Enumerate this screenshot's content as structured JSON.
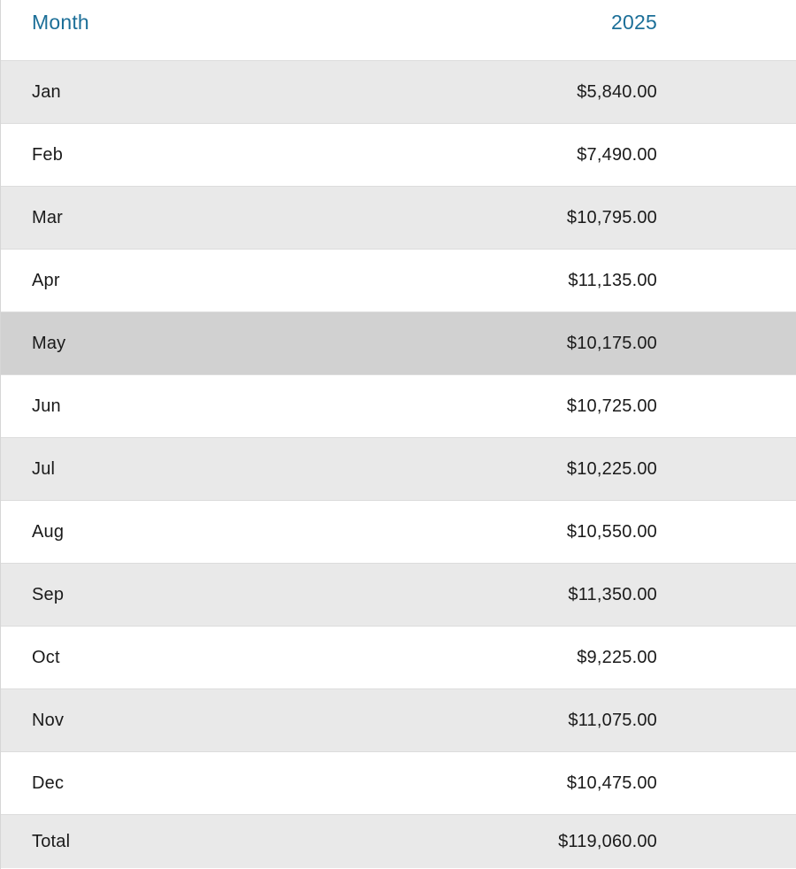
{
  "table": {
    "header": {
      "month": "Month",
      "year": "2025"
    },
    "rows": [
      {
        "month": "Jan",
        "value": "$5,840.00"
      },
      {
        "month": "Feb",
        "value": "$7,490.00"
      },
      {
        "month": "Mar",
        "value": "$10,795.00"
      },
      {
        "month": "Apr",
        "value": "$11,135.00"
      },
      {
        "month": "May",
        "value": "$10,175.00"
      },
      {
        "month": "Jun",
        "value": "$10,725.00"
      },
      {
        "month": "Jul",
        "value": "$10,225.00"
      },
      {
        "month": "Aug",
        "value": "$10,550.00"
      },
      {
        "month": "Sep",
        "value": "$11,350.00"
      },
      {
        "month": "Oct",
        "value": "$9,225.00"
      },
      {
        "month": "Nov",
        "value": "$11,075.00"
      },
      {
        "month": "Dec",
        "value": "$10,475.00"
      }
    ],
    "total": {
      "month": "Total",
      "value": "$119,060.00"
    }
  },
  "colors": {
    "header_text": "#1c6f98",
    "row_alt": "#e9e9e9",
    "row_hover": "#d1d1d1",
    "row_plain": "#ffffff"
  }
}
